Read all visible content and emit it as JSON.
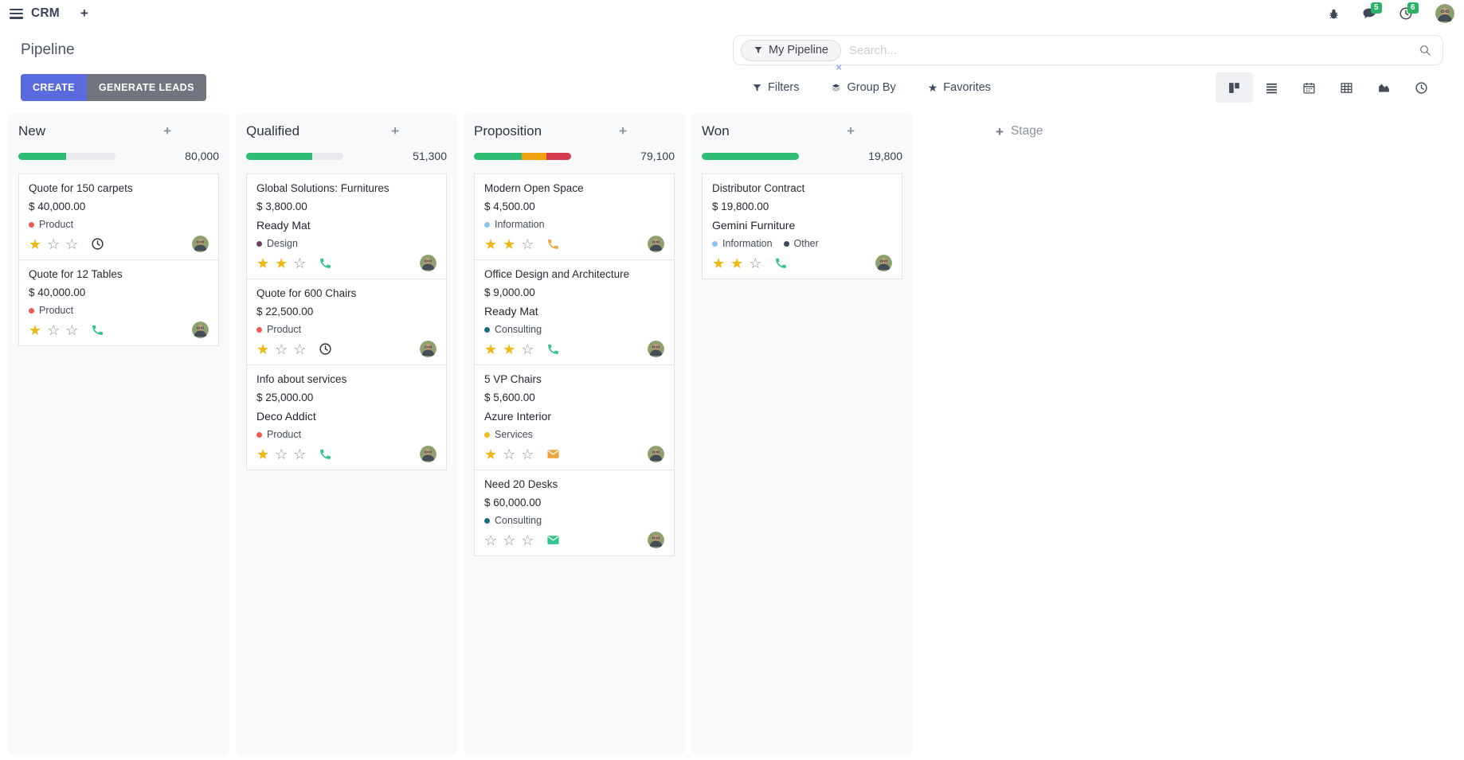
{
  "navbar": {
    "brand": "CRM",
    "messages_badge": "5",
    "activities_badge": "6"
  },
  "control_panel": {
    "title": "Pipeline",
    "create_label": "CREATE",
    "generate_leads_label": "GENERATE LEADS",
    "filters_label": "Filters",
    "group_by_label": "Group By",
    "favorites_label": "Favorites",
    "search": {
      "facet": "My Pipeline",
      "placeholder": "Search..."
    },
    "view_switcher": [
      "kanban",
      "list",
      "calendar",
      "pivot",
      "graph",
      "activity"
    ],
    "active_view": "kanban"
  },
  "colors": {
    "accent": "#5a6be0",
    "success": "#2ebd74",
    "warning": "#f0a20e",
    "danger": "#d43c4e",
    "muted_bar": "#e8e9ed",
    "star": "#efb711",
    "badge": "#28b463"
  },
  "board": {
    "add_stage_label": "Stage",
    "columns": [
      {
        "name": "New",
        "total": "80,000",
        "progress": [
          {
            "color": "success",
            "pct": 49
          }
        ],
        "cards": [
          {
            "title": "Quote for 150 carpets",
            "amount": "$ 40,000.00",
            "company": null,
            "tags": [
              {
                "label": "Product",
                "color": "#ea5c52"
              }
            ],
            "stars": 1,
            "activity": {
              "icon": "clock-icon",
              "color": "#2f3136"
            }
          },
          {
            "title": "Quote for 12 Tables",
            "amount": "$ 40,000.00",
            "company": null,
            "tags": [
              {
                "label": "Product",
                "color": "#ea5c52"
              }
            ],
            "stars": 1,
            "activity": {
              "icon": "phone-icon",
              "color": "#33c48d"
            }
          }
        ]
      },
      {
        "name": "Qualified",
        "total": "51,300",
        "progress": [
          {
            "color": "success",
            "pct": 68
          }
        ],
        "cards": [
          {
            "title": "Global Solutions: Furnitures",
            "amount": "$ 3,800.00",
            "company": "Ready Mat",
            "tags": [
              {
                "label": "Design",
                "color": "#6d3f63"
              }
            ],
            "stars": 2,
            "activity": {
              "icon": "phone-icon",
              "color": "#33c48d"
            }
          },
          {
            "title": "Quote for 600 Chairs",
            "amount": "$ 22,500.00",
            "company": null,
            "tags": [
              {
                "label": "Product",
                "color": "#ea5c52"
              }
            ],
            "stars": 1,
            "activity": {
              "icon": "clock-icon",
              "color": "#2f3136"
            }
          },
          {
            "title": "Info about services",
            "amount": "$ 25,000.00",
            "company": "Deco Addict",
            "tags": [
              {
                "label": "Product",
                "color": "#ea5c52"
              }
            ],
            "stars": 1,
            "activity": {
              "icon": "phone-icon",
              "color": "#33c48d"
            }
          }
        ]
      },
      {
        "name": "Proposition",
        "total": "79,100",
        "progress": [
          {
            "color": "success",
            "pct": 49
          },
          {
            "color": "warning",
            "pct": 26
          },
          {
            "color": "danger",
            "pct": 25
          }
        ],
        "cards": [
          {
            "title": "Modern Open Space",
            "amount": "$ 4,500.00",
            "company": null,
            "tags": [
              {
                "label": "Information",
                "color": "#87c5ec"
              }
            ],
            "stars": 2,
            "activity": {
              "icon": "phone-icon",
              "color": "#eda63d"
            }
          },
          {
            "title": "Office Design and Architecture",
            "amount": "$ 9,000.00",
            "company": "Ready Mat",
            "tags": [
              {
                "label": "Consulting",
                "color": "#16707f"
              }
            ],
            "stars": 2,
            "activity": {
              "icon": "phone-icon",
              "color": "#33c48d"
            }
          },
          {
            "title": "5 VP Chairs",
            "amount": "$ 5,600.00",
            "company": "Azure Interior",
            "tags": [
              {
                "label": "Services",
                "color": "#eebc1d"
              }
            ],
            "stars": 1,
            "activity": {
              "icon": "envelope-icon",
              "color": "#eda63d"
            }
          },
          {
            "title": "Need 20 Desks",
            "amount": "$ 60,000.00",
            "company": null,
            "tags": [
              {
                "label": "Consulting",
                "color": "#16707f"
              }
            ],
            "stars": 0,
            "activity": {
              "icon": "envelope-icon",
              "color": "#33c48d"
            }
          }
        ]
      },
      {
        "name": "Won",
        "total": "19,800",
        "progress": [
          {
            "color": "success",
            "pct": 100
          }
        ],
        "cards": [
          {
            "title": "Distributor Contract",
            "amount": "$ 19,800.00",
            "company": "Gemini Furniture",
            "tags": [
              {
                "label": "Information",
                "color": "#87c5ec"
              },
              {
                "label": "Other",
                "color": "#3f4a63"
              }
            ],
            "stars": 2,
            "activity": {
              "icon": "phone-icon",
              "color": "#33c48d"
            }
          }
        ]
      }
    ]
  }
}
